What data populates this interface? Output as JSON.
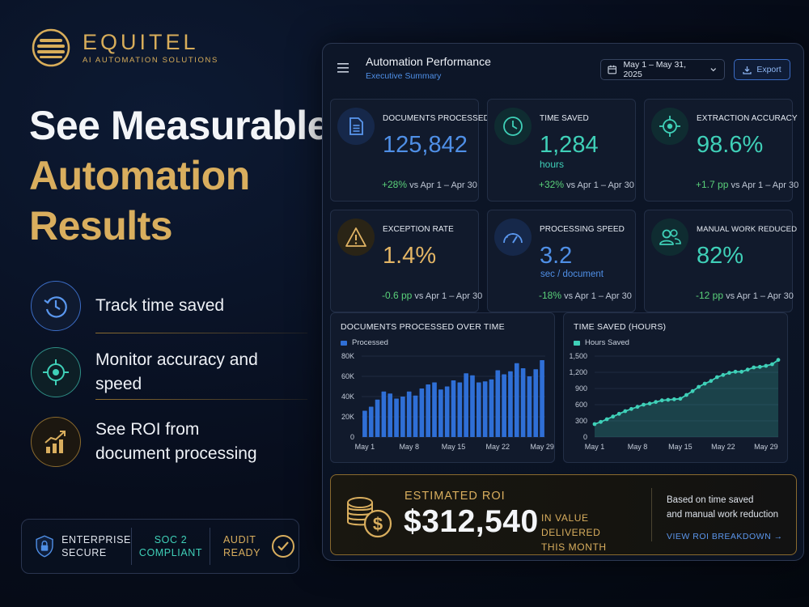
{
  "brand": {
    "name": "EQUITEL",
    "tagline": "AI AUTOMATION SOLUTIONS"
  },
  "headline": {
    "line1": "See Measurable",
    "line2": "Automation",
    "line3": "Results"
  },
  "features": [
    {
      "label": "Track time saved",
      "icon": "clock-refresh-icon"
    },
    {
      "label": "Monitor accuracy and speed",
      "icon": "target-icon"
    },
    {
      "label_line1": "See ROI from",
      "label_line2": "document processing",
      "icon": "growth-chart-icon"
    }
  ],
  "trust": {
    "enterprise": {
      "line1": "ENTERPRISE",
      "line2": "SECURE"
    },
    "soc": {
      "line1": "SOC 2",
      "line2": "COMPLIANT"
    },
    "audit": {
      "line1": "AUDIT",
      "line2": "READY"
    }
  },
  "dashboard": {
    "title": "Automation Performance",
    "subtitle": "Executive Summary",
    "date_range": "May 1 – May 31, 2025",
    "export_label": "Export"
  },
  "kpis": [
    {
      "label": "DOCUMENTS PROCESSED",
      "value": "125,842",
      "unit": "",
      "delta": "+28%",
      "compare": "vs Apr 1 – Apr 30",
      "icon": "document-icon",
      "color": "#4f8fe6"
    },
    {
      "label": "TIME SAVED",
      "value": "1,284",
      "unit": "hours",
      "delta": "+32%",
      "compare": "vs Apr 1 – Apr 30",
      "icon": "clock-icon",
      "color": "#3fd0b8"
    },
    {
      "label": "EXTRACTION ACCURACY",
      "value": "98.6%",
      "unit": "",
      "delta": "+1.7 pp",
      "compare": "vs Apr 1 – Apr 30",
      "icon": "target-icon",
      "color": "#3fd0b8"
    },
    {
      "label": "EXCEPTION RATE",
      "value": "1.4%",
      "unit": "",
      "delta": "-0.6 pp",
      "compare": "vs Apr 1 – Apr 30",
      "icon": "warning-icon",
      "color": "#e3b565"
    },
    {
      "label": "PROCESSING SPEED",
      "value": "3.2",
      "unit": "sec / document",
      "delta": "-18%",
      "compare": "vs Apr 1 – Apr 30",
      "icon": "speedometer-icon",
      "color": "#4f8fe6"
    },
    {
      "label": "MANUAL WORK REDUCED",
      "value": "82%",
      "unit": "",
      "delta": "-12 pp",
      "compare": "vs Apr 1 – Apr 30",
      "icon": "users-icon",
      "color": "#3fd0b8"
    }
  ],
  "chart_data": [
    {
      "type": "bar",
      "title": "DOCUMENTS PROCESSED OVER TIME",
      "series": [
        {
          "name": "Processed",
          "color": "#2f6fd6",
          "values": [
            26000,
            30000,
            37000,
            45000,
            43000,
            38000,
            40000,
            45000,
            41000,
            48000,
            52000,
            54000,
            47000,
            50000,
            56000,
            54000,
            63000,
            61000,
            54000,
            55000,
            57000,
            66000,
            62000,
            65000,
            73000,
            68000,
            60000,
            67000,
            76000
          ]
        }
      ],
      "x_tick_labels": [
        "May 1",
        "May 8",
        "May 15",
        "May 22",
        "May 29"
      ],
      "y_tick_labels": [
        "0",
        "20K",
        "40K",
        "60K",
        "80K"
      ],
      "ylim": [
        0,
        80000
      ]
    },
    {
      "type": "area",
      "title": "TIME SAVED (HOURS)",
      "series": [
        {
          "name": "Hours Saved",
          "color": "#3fd0b8",
          "values": [
            240,
            280,
            330,
            380,
            430,
            480,
            520,
            560,
            600,
            620,
            650,
            680,
            690,
            700,
            710,
            780,
            850,
            930,
            990,
            1040,
            1110,
            1150,
            1190,
            1210,
            1210,
            1250,
            1290,
            1300,
            1320,
            1350,
            1430
          ]
        }
      ],
      "x_tick_labels": [
        "May 1",
        "May 8",
        "May 15",
        "May 22",
        "May 29"
      ],
      "y_tick_labels": [
        "0",
        "300",
        "600",
        "900",
        "1,200",
        "1,500"
      ],
      "ylim": [
        0,
        1500
      ]
    }
  ],
  "roi": {
    "label": "ESTIMATED ROI",
    "value": "$312,540",
    "desc_line1": "IN VALUE DELIVERED",
    "desc_line2": "THIS MONTH",
    "note_line1": "Based on time saved",
    "note_line2": "and manual work reduction",
    "link": "VIEW ROI BREAKDOWN →"
  }
}
